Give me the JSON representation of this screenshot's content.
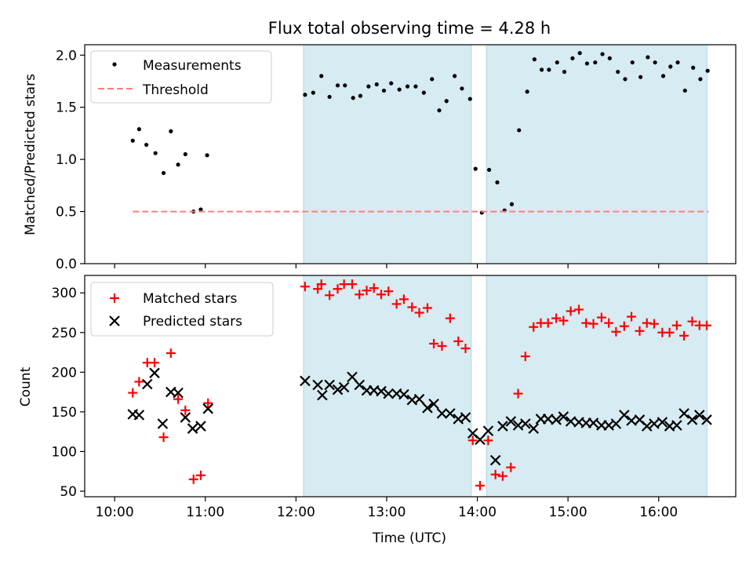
{
  "title": "Flux total observing time = 4.28 h",
  "xlabel": "Time (UTC)",
  "x_ticks": [
    "10:00",
    "11:00",
    "12:00",
    "13:00",
    "14:00",
    "15:00",
    "16:00"
  ],
  "colors": {
    "measurement": "#000000",
    "threshold": "#ff7f7f",
    "matched": "#ff0000",
    "predicted": "#000000",
    "band": "#add8e6"
  },
  "chart_data": [
    {
      "type": "scatter",
      "panel": "top",
      "ylabel": "Matched/Predicted stars",
      "ylim": [
        0,
        2.1
      ],
      "yticks": [
        "0.0",
        "0.5",
        "1.0",
        "1.5",
        "2.0"
      ],
      "xlim_hours": [
        9.67,
        16.85
      ],
      "legend": "top-left",
      "shaded_intervals": [
        [
          "12:05",
          "13:56"
        ],
        [
          "14:06",
          "16:32"
        ]
      ],
      "series": [
        {
          "name": "Measurements",
          "marker": "dot",
          "points": [
            [
              10.2,
              1.18
            ],
            [
              10.27,
              1.29
            ],
            [
              10.35,
              1.14
            ],
            [
              10.45,
              1.06
            ],
            [
              10.54,
              0.87
            ],
            [
              10.62,
              1.27
            ],
            [
              10.7,
              0.95
            ],
            [
              10.78,
              1.05
            ],
            [
              10.87,
              0.5
            ],
            [
              10.95,
              0.52
            ],
            [
              11.02,
              1.04
            ],
            [
              12.1,
              1.62
            ],
            [
              12.19,
              1.64
            ],
            [
              12.28,
              1.8
            ],
            [
              12.37,
              1.6
            ],
            [
              12.46,
              1.71
            ],
            [
              12.54,
              1.71
            ],
            [
              12.63,
              1.59
            ],
            [
              12.71,
              1.61
            ],
            [
              12.8,
              1.7
            ],
            [
              12.89,
              1.72
            ],
            [
              12.97,
              1.66
            ],
            [
              13.05,
              1.73
            ],
            [
              13.14,
              1.67
            ],
            [
              13.23,
              1.7
            ],
            [
              13.32,
              1.7
            ],
            [
              13.41,
              1.64
            ],
            [
              13.5,
              1.77
            ],
            [
              13.58,
              1.47
            ],
            [
              13.66,
              1.56
            ],
            [
              13.75,
              1.8
            ],
            [
              13.83,
              1.68
            ],
            [
              13.92,
              1.58
            ],
            [
              13.98,
              0.91
            ],
            [
              14.05,
              0.49
            ],
            [
              14.13,
              0.9
            ],
            [
              14.22,
              0.78
            ],
            [
              14.3,
              0.51
            ],
            [
              14.38,
              0.57
            ],
            [
              14.46,
              1.28
            ],
            [
              14.55,
              1.65
            ],
            [
              14.63,
              1.96
            ],
            [
              14.71,
              1.86
            ],
            [
              14.79,
              1.86
            ],
            [
              14.88,
              1.93
            ],
            [
              14.96,
              1.84
            ],
            [
              15.05,
              1.97
            ],
            [
              15.13,
              2.02
            ],
            [
              15.21,
              1.92
            ],
            [
              15.3,
              1.93
            ],
            [
              15.38,
              2.01
            ],
            [
              15.46,
              1.97
            ],
            [
              15.55,
              1.84
            ],
            [
              15.63,
              1.77
            ],
            [
              15.71,
              1.93
            ],
            [
              15.8,
              1.79
            ],
            [
              15.88,
              1.98
            ],
            [
              15.96,
              1.93
            ],
            [
              16.05,
              1.8
            ],
            [
              16.13,
              1.89
            ],
            [
              16.21,
              1.93
            ],
            [
              16.29,
              1.66
            ],
            [
              16.38,
              1.88
            ],
            [
              16.46,
              1.77
            ],
            [
              16.54,
              1.85
            ]
          ]
        },
        {
          "name": "Threshold",
          "style": "dashed",
          "points": [
            [
              10.2,
              0.5
            ],
            [
              16.55,
              0.5
            ]
          ]
        }
      ]
    },
    {
      "type": "scatter",
      "panel": "bottom",
      "ylabel": "Count",
      "ylim": [
        43,
        322
      ],
      "yticks": [
        "50",
        "100",
        "150",
        "200",
        "250",
        "300"
      ],
      "xlim_hours": [
        9.67,
        16.85
      ],
      "legend": "top-left",
      "shaded_intervals": [
        [
          "12:05",
          "13:56"
        ],
        [
          "14:06",
          "16:32"
        ]
      ],
      "series": [
        {
          "name": "Matched stars",
          "marker": "plus",
          "points": [
            [
              10.2,
              174
            ],
            [
              10.27,
              188
            ],
            [
              10.36,
              212
            ],
            [
              10.44,
              212
            ],
            [
              10.54,
              118
            ],
            [
              10.62,
              224
            ],
            [
              10.7,
              166
            ],
            [
              10.78,
              152
            ],
            [
              10.87,
              65
            ],
            [
              10.95,
              70
            ],
            [
              11.03,
              161
            ],
            [
              12.1,
              308
            ],
            [
              12.24,
              305
            ],
            [
              12.28,
              311
            ],
            [
              12.37,
              297
            ],
            [
              12.46,
              305
            ],
            [
              12.53,
              311
            ],
            [
              12.62,
              311
            ],
            [
              12.7,
              298
            ],
            [
              12.78,
              303
            ],
            [
              12.86,
              306
            ],
            [
              12.94,
              298
            ],
            [
              13.02,
              302
            ],
            [
              13.11,
              286
            ],
            [
              13.19,
              292
            ],
            [
              13.28,
              282
            ],
            [
              13.36,
              275
            ],
            [
              13.45,
              281
            ],
            [
              13.52,
              236
            ],
            [
              13.61,
              233
            ],
            [
              13.7,
              268
            ],
            [
              13.79,
              239
            ],
            [
              13.87,
              230
            ],
            [
              13.95,
              114
            ],
            [
              14.03,
              57
            ],
            [
              14.12,
              114
            ],
            [
              14.2,
              71
            ],
            [
              14.28,
              69
            ],
            [
              14.37,
              80
            ],
            [
              14.45,
              173
            ],
            [
              14.53,
              220
            ],
            [
              14.62,
              257
            ],
            [
              14.7,
              262
            ],
            [
              14.78,
              262
            ],
            [
              14.87,
              268
            ],
            [
              14.95,
              265
            ],
            [
              15.03,
              277
            ],
            [
              15.12,
              279
            ],
            [
              15.2,
              262
            ],
            [
              15.28,
              261
            ],
            [
              15.37,
              269
            ],
            [
              15.45,
              262
            ],
            [
              15.53,
              251
            ],
            [
              15.62,
              258
            ],
            [
              15.7,
              270
            ],
            [
              15.79,
              252
            ],
            [
              15.87,
              262
            ],
            [
              15.95,
              261
            ],
            [
              16.04,
              250
            ],
            [
              16.12,
              250
            ],
            [
              16.2,
              259
            ],
            [
              16.28,
              246
            ],
            [
              16.37,
              264
            ],
            [
              16.45,
              259
            ],
            [
              16.53,
              259
            ]
          ]
        },
        {
          "name": "Predicted stars",
          "marker": "x",
          "points": [
            [
              10.2,
              147
            ],
            [
              10.27,
              146
            ],
            [
              10.36,
              185
            ],
            [
              10.44,
              199
            ],
            [
              10.53,
              135
            ],
            [
              10.62,
              175
            ],
            [
              10.7,
              174
            ],
            [
              10.78,
              143
            ],
            [
              10.86,
              129
            ],
            [
              10.95,
              132
            ],
            [
              11.03,
              154
            ],
            [
              12.1,
              189
            ],
            [
              12.24,
              184
            ],
            [
              12.29,
              171
            ],
            [
              12.37,
              184
            ],
            [
              12.46,
              178
            ],
            [
              12.53,
              181
            ],
            [
              12.62,
              194
            ],
            [
              12.7,
              184
            ],
            [
              12.78,
              177
            ],
            [
              12.86,
              177
            ],
            [
              12.94,
              176
            ],
            [
              13.02,
              173
            ],
            [
              13.11,
              173
            ],
            [
              13.19,
              172
            ],
            [
              13.28,
              165
            ],
            [
              13.36,
              166
            ],
            [
              13.45,
              155
            ],
            [
              13.52,
              160
            ],
            [
              13.61,
              148
            ],
            [
              13.7,
              148
            ],
            [
              13.79,
              141
            ],
            [
              13.87,
              143
            ],
            [
              13.95,
              123
            ],
            [
              14.03,
              115
            ],
            [
              14.12,
              126
            ],
            [
              14.2,
              89
            ],
            [
              14.28,
              132
            ],
            [
              14.37,
              138
            ],
            [
              14.45,
              133
            ],
            [
              14.53,
              135
            ],
            [
              14.62,
              129
            ],
            [
              14.7,
              141
            ],
            [
              14.78,
              141
            ],
            [
              14.87,
              140
            ],
            [
              14.95,
              144
            ],
            [
              15.03,
              138
            ],
            [
              15.12,
              137
            ],
            [
              15.2,
              136
            ],
            [
              15.28,
              136
            ],
            [
              15.37,
              133
            ],
            [
              15.45,
              133
            ],
            [
              15.53,
              135
            ],
            [
              15.62,
              146
            ],
            [
              15.7,
              139
            ],
            [
              15.79,
              140
            ],
            [
              15.87,
              132
            ],
            [
              15.95,
              135
            ],
            [
              16.04,
              137
            ],
            [
              16.12,
              132
            ],
            [
              16.2,
              133
            ],
            [
              16.28,
              148
            ],
            [
              16.37,
              140
            ],
            [
              16.45,
              146
            ],
            [
              16.53,
              140
            ]
          ]
        }
      ]
    }
  ]
}
